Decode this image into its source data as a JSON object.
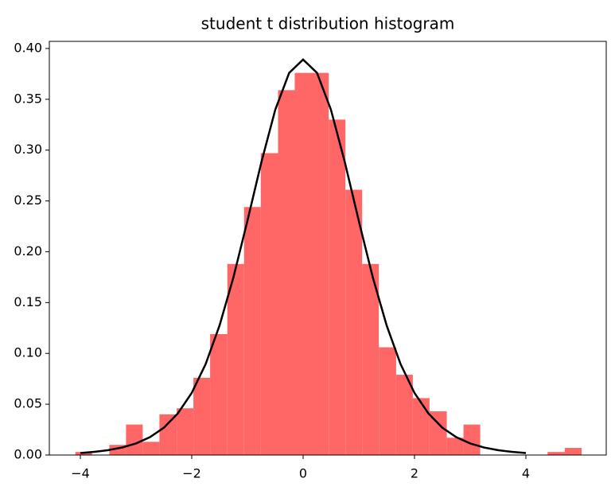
{
  "chart_data": {
    "type": "histogram",
    "title": "student t distribution histogram",
    "bins": [
      -4.09,
      -3.79,
      -3.48,
      -3.18,
      -2.88,
      -2.58,
      -2.27,
      -1.97,
      -1.67,
      -1.36,
      -1.06,
      -0.76,
      -0.45,
      -0.15,
      0.15,
      0.46,
      0.76,
      1.06,
      1.36,
      1.67,
      1.97,
      2.27,
      2.58,
      2.88,
      3.18,
      3.49,
      3.79,
      4.09,
      4.39,
      4.7,
      5.0
    ],
    "values": [
      0.003,
      0,
      0.01,
      0.03,
      0.013,
      0.04,
      0.046,
      0.076,
      0.119,
      0.188,
      0.244,
      0.297,
      0.359,
      0.376,
      0.376,
      0.33,
      0.261,
      0.188,
      0.106,
      0.079,
      0.056,
      0.043,
      0.017,
      0.03,
      0,
      0,
      0,
      0,
      0.003,
      0.007
    ],
    "color": "#ff6666",
    "line": {
      "type": "line",
      "color": "#000000",
      "x": [
        -4,
        -3.75,
        -3.5,
        -3.25,
        -3,
        -2.75,
        -2.5,
        -2.25,
        -2,
        -1.75,
        -1.5,
        -1.25,
        -1,
        -0.75,
        -0.5,
        -0.25,
        0,
        0.25,
        0.5,
        0.75,
        1,
        1.25,
        1.5,
        1.75,
        2,
        2.25,
        2.5,
        2.75,
        3,
        3.25,
        3.5,
        3.75,
        4
      ],
      "values": [
        0.002,
        0.0031,
        0.0048,
        0.0074,
        0.0114,
        0.0176,
        0.0269,
        0.0409,
        0.0611,
        0.0895,
        0.1275,
        0.1751,
        0.2304,
        0.288,
        0.3397,
        0.376,
        0.3891,
        0.376,
        0.3397,
        0.288,
        0.2304,
        0.1751,
        0.1275,
        0.0895,
        0.0611,
        0.0409,
        0.0269,
        0.0176,
        0.0114,
        0.0074,
        0.0048,
        0.0031,
        0.002
      ]
    },
    "xlim": [
      -4.557,
      5.443
    ],
    "ylim": [
      0,
      0.407
    ],
    "xticks": [
      {
        "value": -4,
        "label": "−4"
      },
      {
        "value": -2,
        "label": "−2"
      },
      0,
      2,
      4
    ],
    "yticks": [
      {
        "value": 0,
        "label": "0.00"
      },
      {
        "value": 0.05,
        "label": "0.05"
      },
      {
        "value": 0.1,
        "label": "0.10"
      },
      {
        "value": 0.15,
        "label": "0.15"
      },
      {
        "value": 0.2,
        "label": "0.20"
      },
      {
        "value": 0.25,
        "label": "0.25"
      },
      {
        "value": 0.3,
        "label": "0.30"
      },
      {
        "value": 0.35,
        "label": "0.35"
      },
      {
        "value": 0.4,
        "label": "0.40"
      }
    ]
  }
}
